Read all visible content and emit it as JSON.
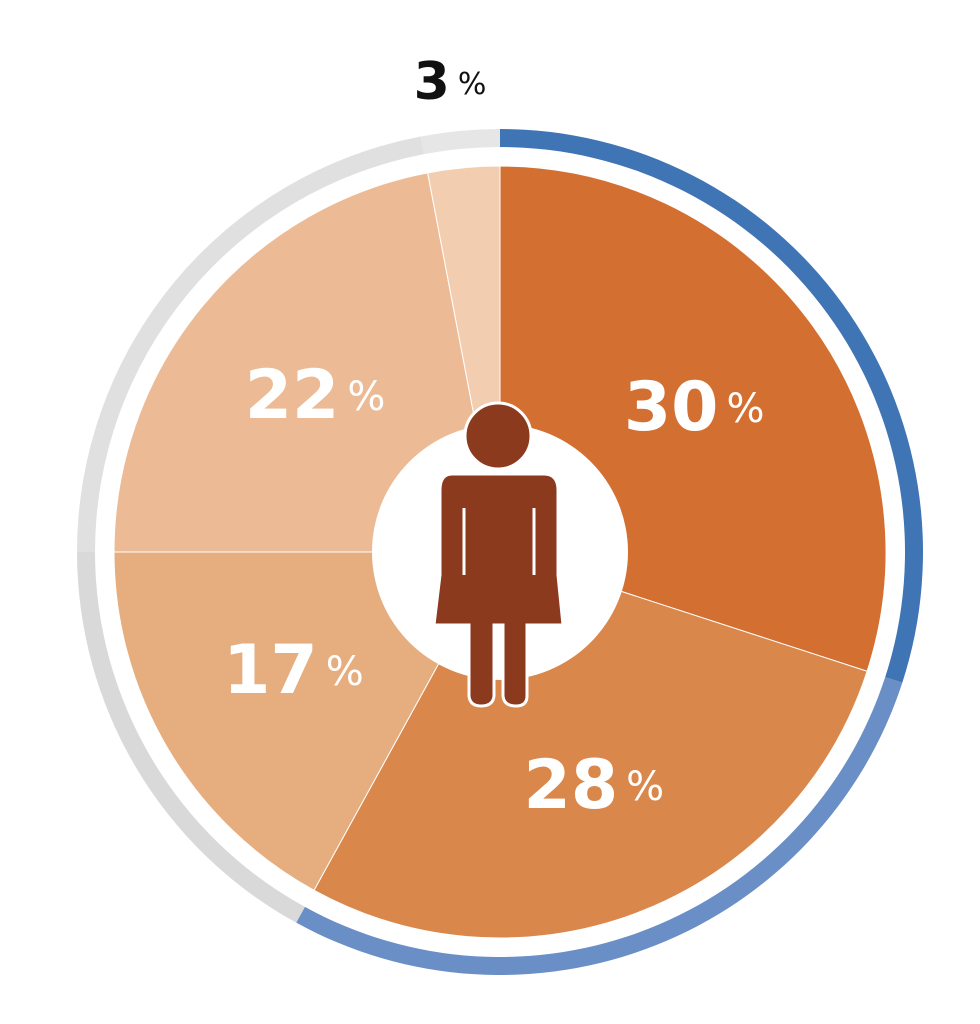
{
  "chart_data": {
    "type": "pie",
    "categories": [
      null,
      null,
      null,
      null,
      null
    ],
    "values": [
      30,
      28,
      17,
      22,
      3
    ],
    "unit": "%",
    "colors": [
      "#d46f32",
      "#da874b",
      "#e6ad7e",
      "#ecbb95",
      "#f2cdb0"
    ],
    "ring_colors": [
      "#3f74b5",
      "#6a8ec6",
      "#d9d9d9",
      "#e0e0e0",
      "#e6e6e6"
    ]
  }
}
